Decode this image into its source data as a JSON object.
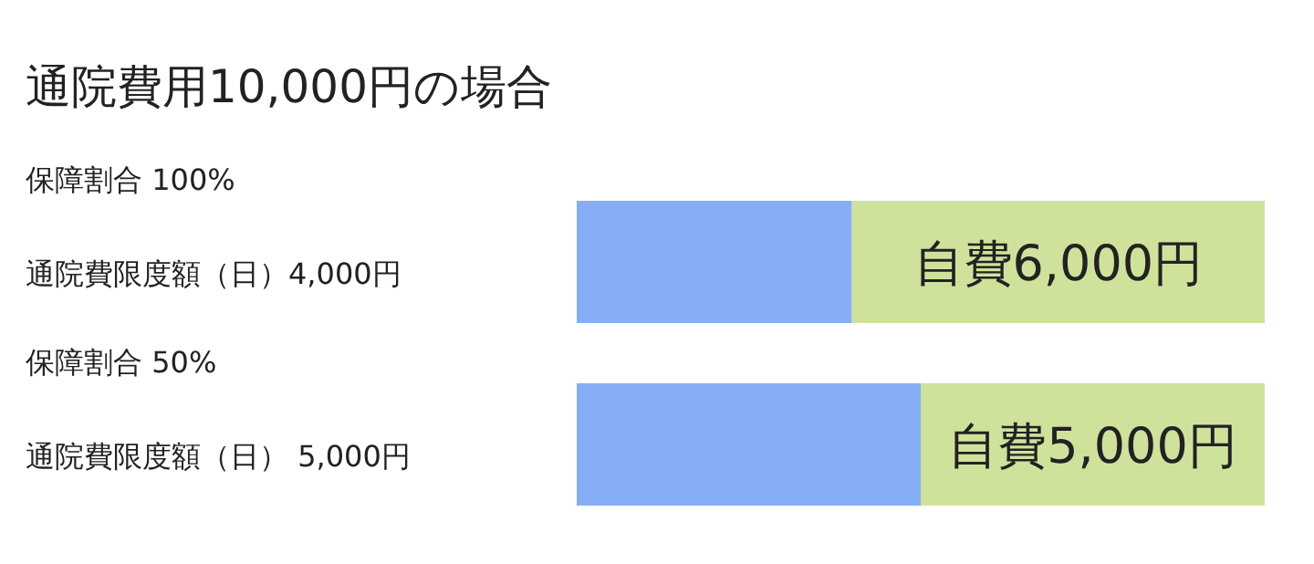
{
  "chart_data": {
    "type": "bar",
    "orientation": "horizontal",
    "stacked": true,
    "title": "通院費用10,000円の場合",
    "categories": [
      "保障割合 100%\n通院費限度額（日）4,000円",
      "保障割合 50%\n通院費限度額（日） 5,000円"
    ],
    "series": [
      {
        "color": "#86aef5",
        "values": [
          4000,
          5000
        ]
      },
      {
        "color": "#cfe29c",
        "values": [
          6000,
          5000
        ],
        "value_labels": [
          "自費6,000円",
          "自費5,000円"
        ]
      }
    ]
  }
}
